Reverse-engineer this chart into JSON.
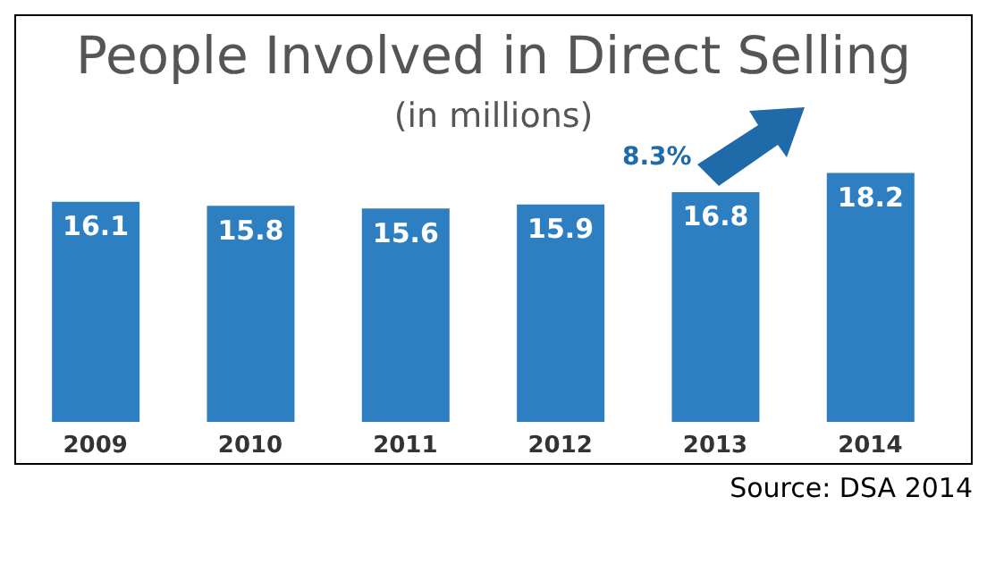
{
  "chart_data": {
    "type": "bar",
    "title": "People Involved in Direct Selling",
    "subtitle": "(in millions)",
    "categories": [
      "2009",
      "2010",
      "2011",
      "2012",
      "2013",
      "2014"
    ],
    "values": [
      16.1,
      15.8,
      15.6,
      15.9,
      16.8,
      18.2
    ],
    "color": "#2e7fc2",
    "data_labels": true,
    "annotations": [
      "8.3%",
      "Source: DSA 2014"
    ]
  }
}
